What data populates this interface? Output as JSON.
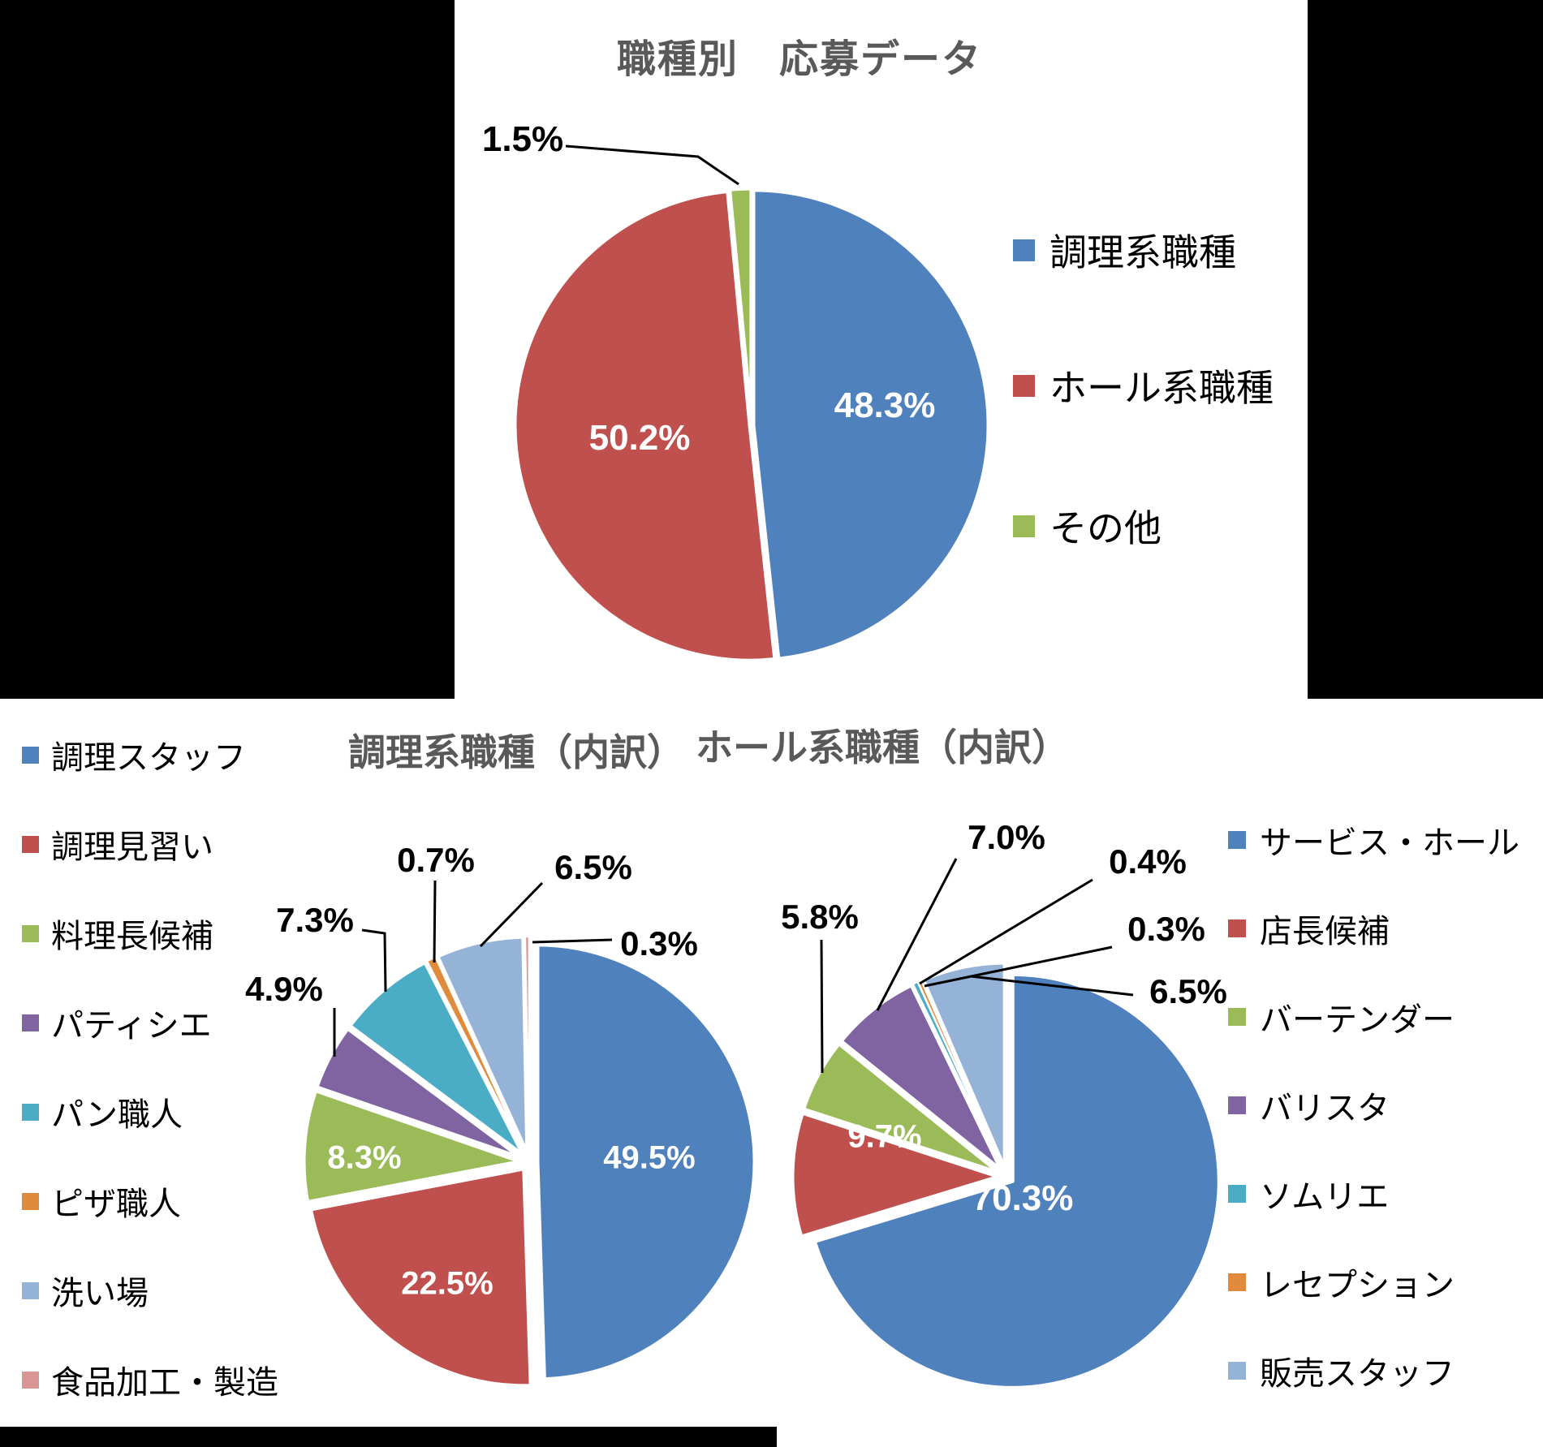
{
  "page": {
    "background_color": "#FFFFFF",
    "mask_color": "#000000",
    "title_color": "#595959",
    "label_color": "#000000",
    "inpie_label_color": "#FFFFFF"
  },
  "chart_data": [
    {
      "type": "pie",
      "title": "職種別　応募データ",
      "categories": [
        "調理系職種",
        "ホール系職種",
        "その他"
      ],
      "values": [
        48.3,
        50.2,
        1.5
      ],
      "pct_labels": [
        "48.3%",
        "50.2%",
        "1.5%"
      ],
      "colors": [
        "#4F81BD",
        "#C0504D",
        "#9BBB59"
      ],
      "legend_position": "right",
      "start_angle_deg": 0,
      "direction": "clockwise"
    },
    {
      "type": "pie",
      "title": "調理系職種（内訳）",
      "categories": [
        "調理スタッフ",
        "調理見習い",
        "料理長候補",
        "パティシエ",
        "パン職人",
        "ピザ職人",
        "洗い場",
        "食品加工・製造"
      ],
      "values": [
        49.5,
        22.5,
        8.3,
        4.9,
        7.3,
        0.7,
        6.5,
        0.3
      ],
      "pct_labels": [
        "49.5%",
        "22.5%",
        "8.3%",
        "4.9%",
        "7.3%",
        "0.7%",
        "6.5%",
        "0.3%"
      ],
      "colors": [
        "#4F81BD",
        "#C0504D",
        "#9BBB59",
        "#8064A2",
        "#4BACC6",
        "#E08B3C",
        "#95B3D7",
        "#D99694"
      ],
      "legend_position": "left",
      "start_angle_deg": 0,
      "direction": "clockwise"
    },
    {
      "type": "pie",
      "title": "ホール系職種（内訳）",
      "categories": [
        "サービス・ホール",
        "店長候補",
        "バーテンダー",
        "バリスタ",
        "ソムリエ",
        "レセプション",
        "販売スタッフ"
      ],
      "values": [
        70.3,
        9.7,
        5.8,
        7.0,
        0.4,
        0.3,
        6.5
      ],
      "pct_labels": [
        "70.3%",
        "9.7%",
        "5.8%",
        "7.0%",
        "0.4%",
        "0.3%",
        "6.5%"
      ],
      "colors": [
        "#4F81BD",
        "#C0504D",
        "#9BBB59",
        "#8064A2",
        "#4BACC6",
        "#E08B3C",
        "#95B3D7"
      ],
      "legend_position": "right",
      "start_angle_deg": 0,
      "direction": "clockwise"
    }
  ]
}
